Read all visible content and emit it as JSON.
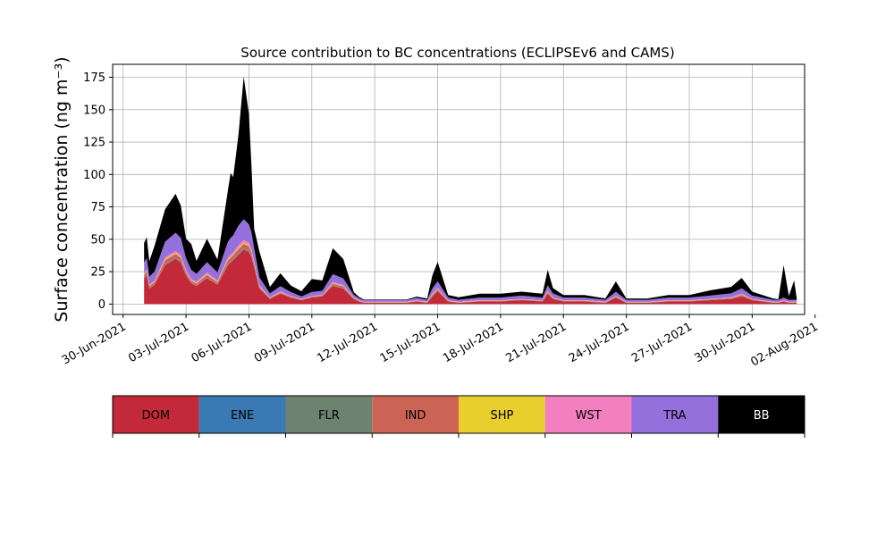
{
  "chart_data": {
    "type": "area",
    "stacked": true,
    "title": "Source contribution to BC concentrations (ECLIPSEv6 and CAMS)",
    "ylabel": "Surface concentration (ng m⁻³)",
    "ylim": [
      -8,
      185
    ],
    "yticks": [
      0,
      25,
      50,
      75,
      100,
      125,
      150,
      175
    ],
    "xlim": [
      "2021-06-29T12:00",
      "2021-08-01T12:00"
    ],
    "xticks": [
      "2021-06-30",
      "2021-07-03",
      "2021-07-06",
      "2021-07-09",
      "2021-07-12",
      "2021-07-15",
      "2021-07-18",
      "2021-07-21",
      "2021-07-24",
      "2021-07-27",
      "2021-07-30",
      "2021-08-02"
    ],
    "xtick_labels": [
      "30-Jun-2021",
      "03-Jul-2021",
      "06-Jul-2021",
      "09-Jul-2021",
      "12-Jul-2021",
      "15-Jul-2021",
      "18-Jul-2021",
      "21-Jul-2021",
      "24-Jul-2021",
      "27-Jul-2021",
      "30-Jul-2021",
      "02-Aug-2021"
    ],
    "grid": true,
    "x": [
      "2021-07-01T00:00",
      "2021-07-01T03:00",
      "2021-07-01T06:00",
      "2021-07-01T12:00",
      "2021-07-02T00:00",
      "2021-07-02T12:00",
      "2021-07-02T18:00",
      "2021-07-03T00:00",
      "2021-07-03T06:00",
      "2021-07-03T12:00",
      "2021-07-04T00:00",
      "2021-07-04T12:00",
      "2021-07-05T00:00",
      "2021-07-05T03:00",
      "2021-07-05T06:00",
      "2021-07-05T12:00",
      "2021-07-05T18:00",
      "2021-07-06T00:00",
      "2021-07-06T03:00",
      "2021-07-06T06:00",
      "2021-07-06T12:00",
      "2021-07-07T00:00",
      "2021-07-07T12:00",
      "2021-07-08T00:00",
      "2021-07-08T12:00",
      "2021-07-09T00:00",
      "2021-07-09T12:00",
      "2021-07-10T00:00",
      "2021-07-10T12:00",
      "2021-07-11T00:00",
      "2021-07-11T06:00",
      "2021-07-11T12:00",
      "2021-07-12T00:00",
      "2021-07-12T12:00",
      "2021-07-13T00:00",
      "2021-07-13T12:00",
      "2021-07-14T00:00",
      "2021-07-14T12:00",
      "2021-07-14T18:00",
      "2021-07-15T00:00",
      "2021-07-15T12:00",
      "2021-07-16T00:00",
      "2021-07-17T00:00",
      "2021-07-18T00:00",
      "2021-07-19T00:00",
      "2021-07-20T00:00",
      "2021-07-20T06:00",
      "2021-07-20T12:00",
      "2021-07-21T00:00",
      "2021-07-22T00:00",
      "2021-07-23T00:00",
      "2021-07-23T12:00",
      "2021-07-24T00:00",
      "2021-07-25T00:00",
      "2021-07-26T00:00",
      "2021-07-27T00:00",
      "2021-07-28T00:00",
      "2021-07-29T00:00",
      "2021-07-29T12:00",
      "2021-07-30T00:00",
      "2021-07-31T00:00",
      "2021-07-31T06:00",
      "2021-07-31T12:00",
      "2021-07-31T18:00",
      "2021-08-01T00:00",
      "2021-08-01T03:00"
    ],
    "series": [
      {
        "name": "DOM",
        "color": "#c42939",
        "values": [
          20,
          22,
          12,
          15,
          30,
          35,
          32,
          22,
          16,
          14,
          20,
          15,
          30,
          32,
          34,
          38,
          42,
          40,
          36,
          28,
          12,
          4,
          8,
          5,
          3,
          5,
          6,
          14,
          12,
          4,
          2,
          1,
          1,
          1,
          1,
          1,
          2,
          1,
          6,
          10,
          2,
          1,
          2,
          2,
          3,
          2,
          8,
          4,
          2,
          2,
          1,
          5,
          1,
          1,
          2,
          2,
          3,
          4,
          6,
          3,
          1,
          1,
          2,
          1,
          1,
          1
        ]
      },
      {
        "name": "ENE",
        "color": "#3a79b3",
        "values": [
          0.3,
          0.3,
          0.2,
          0.2,
          0.4,
          0.4,
          0.4,
          0.3,
          0.2,
          0.2,
          0.3,
          0.2,
          0.4,
          0.4,
          0.4,
          0.5,
          0.5,
          0.5,
          0.4,
          0.3,
          0.2,
          0.1,
          0.1,
          0.1,
          0.1,
          0.1,
          0.1,
          0.2,
          0.2,
          0.1,
          0.1,
          0.1,
          0.1,
          0.1,
          0.1,
          0.1,
          0.1,
          0.1,
          0.2,
          0.2,
          0.1,
          0.1,
          0.1,
          0.1,
          0.1,
          0.1,
          0.2,
          0.1,
          0.1,
          0.1,
          0.1,
          0.1,
          0.1,
          0.1,
          0.1,
          0.1,
          0.1,
          0.1,
          0.2,
          0.1,
          0.1,
          0.1,
          0.1,
          0.1,
          0.1,
          0.1
        ]
      },
      {
        "name": "FLR",
        "color": "#6e8270",
        "values": [
          0.3,
          0.3,
          0.2,
          0.2,
          0.4,
          0.4,
          0.4,
          0.3,
          0.2,
          0.2,
          0.3,
          0.2,
          0.4,
          0.4,
          0.4,
          0.5,
          0.5,
          0.5,
          0.4,
          0.3,
          0.2,
          0.1,
          0.1,
          0.1,
          0.1,
          0.1,
          0.1,
          0.2,
          0.2,
          0.1,
          0.1,
          0.1,
          0.1,
          0.1,
          0.1,
          0.1,
          0.1,
          0.1,
          0.2,
          0.2,
          0.1,
          0.1,
          0.1,
          0.1,
          0.1,
          0.1,
          0.2,
          0.1,
          0.1,
          0.1,
          0.1,
          0.1,
          0.1,
          0.1,
          0.1,
          0.1,
          0.1,
          0.1,
          0.2,
          0.1,
          0.1,
          0.1,
          0.1,
          0.1,
          0.1,
          0.1
        ]
      },
      {
        "name": "IND",
        "color": "#cb6455",
        "values": [
          2,
          2.5,
          1.5,
          1.5,
          3,
          3,
          3,
          2,
          1.5,
          1.5,
          2,
          1.5,
          3,
          3,
          3,
          3.5,
          3.5,
          3.5,
          3,
          2.5,
          1,
          0.5,
          0.8,
          0.5,
          0.3,
          0.5,
          0.5,
          1.5,
          1.2,
          0.4,
          0.3,
          0.2,
          0.2,
          0.2,
          0.2,
          0.2,
          0.3,
          0.2,
          0.8,
          1,
          0.3,
          0.2,
          0.3,
          0.3,
          0.4,
          0.3,
          1,
          0.5,
          0.3,
          0.3,
          0.2,
          0.6,
          0.2,
          0.2,
          0.3,
          0.3,
          0.4,
          0.5,
          0.8,
          0.4,
          0.2,
          0.2,
          0.3,
          0.2,
          0.2,
          0.2
        ]
      },
      {
        "name": "SHP",
        "color": "#e8cf2e",
        "values": [
          0.5,
          0.5,
          0.4,
          0.4,
          0.8,
          0.8,
          0.8,
          0.6,
          0.5,
          0.5,
          0.6,
          0.5,
          0.8,
          0.8,
          0.8,
          1,
          1,
          1,
          0.8,
          0.7,
          0.4,
          0.2,
          0.3,
          0.2,
          0.1,
          0.2,
          0.2,
          0.4,
          0.4,
          0.2,
          0.2,
          0.2,
          0.2,
          0.2,
          0.2,
          0.2,
          0.2,
          0.2,
          0.4,
          0.4,
          0.2,
          0.2,
          0.2,
          0.2,
          0.2,
          0.2,
          0.4,
          0.2,
          0.2,
          0.2,
          0.2,
          0.3,
          0.2,
          0.2,
          0.2,
          0.2,
          0.2,
          0.2,
          0.4,
          0.2,
          0.2,
          0.2,
          0.2,
          0.2,
          0.2,
          0.2
        ]
      },
      {
        "name": "WST",
        "color": "#f27fbf",
        "values": [
          1,
          1,
          0.8,
          0.8,
          1.5,
          1.5,
          1.5,
          1.2,
          1,
          1,
          1.2,
          1,
          1.5,
          1.5,
          1.5,
          2,
          2,
          2,
          1.5,
          1.2,
          0.8,
          0.4,
          0.5,
          0.4,
          0.3,
          0.4,
          0.4,
          0.8,
          0.8,
          0.4,
          0.3,
          0.2,
          0.2,
          0.2,
          0.2,
          0.2,
          0.3,
          0.2,
          0.6,
          0.8,
          0.3,
          0.2,
          0.3,
          0.3,
          0.3,
          0.3,
          0.6,
          0.4,
          0.3,
          0.3,
          0.2,
          0.4,
          0.2,
          0.2,
          0.3,
          0.3,
          0.3,
          0.4,
          0.6,
          0.3,
          0.2,
          0.2,
          0.3,
          0.2,
          0.2,
          0.2
        ]
      },
      {
        "name": "TRA",
        "color": "#9370db",
        "values": [
          8,
          9,
          6,
          7,
          12,
          14,
          13,
          9,
          7,
          6,
          8,
          6,
          12,
          13,
          13,
          15,
          16,
          14,
          13,
          10,
          6,
          3,
          4,
          3,
          2,
          3,
          3,
          6,
          5,
          2,
          1.5,
          1.2,
          1.2,
          1.2,
          1.2,
          1.2,
          1.8,
          1.5,
          4,
          5,
          2,
          1.5,
          2,
          2,
          2.5,
          2,
          4,
          3,
          2,
          2,
          1.5,
          3,
          1.5,
          1.5,
          2,
          2,
          2.5,
          3,
          4,
          2.5,
          1.5,
          1.5,
          2,
          1.5,
          1.5,
          1.5
        ]
      },
      {
        "name": "BB",
        "color": "#000000",
        "values": [
          15,
          16,
          12,
          20,
          25,
          30,
          25,
          15,
          20,
          10,
          18,
          10,
          40,
          50,
          45,
          70,
          110,
          85,
          50,
          15,
          20,
          5,
          10,
          5,
          4,
          10,
          8,
          20,
          15,
          2,
          1,
          0.5,
          0.5,
          0.5,
          0.5,
          0.5,
          1,
          1,
          10,
          15,
          2,
          2,
          3,
          3,
          3,
          3,
          12,
          4,
          2,
          2,
          1,
          8,
          1,
          1,
          2,
          2,
          4,
          5,
          8,
          3,
          1,
          0.5,
          25,
          3,
          15,
          1
        ]
      }
    ]
  },
  "legend": {
    "items": [
      {
        "label": "DOM",
        "color": "#c42939",
        "text_color": "#000000"
      },
      {
        "label": "ENE",
        "color": "#3a79b3",
        "text_color": "#000000"
      },
      {
        "label": "FLR",
        "color": "#6e8270",
        "text_color": "#000000"
      },
      {
        "label": "IND",
        "color": "#cb6455",
        "text_color": "#000000"
      },
      {
        "label": "SHP",
        "color": "#e8cf2e",
        "text_color": "#000000"
      },
      {
        "label": "WST",
        "color": "#f27fbf",
        "text_color": "#000000"
      },
      {
        "label": "TRA",
        "color": "#9370db",
        "text_color": "#000000"
      },
      {
        "label": "BB",
        "color": "#000000",
        "text_color": "#ffffff"
      }
    ]
  }
}
